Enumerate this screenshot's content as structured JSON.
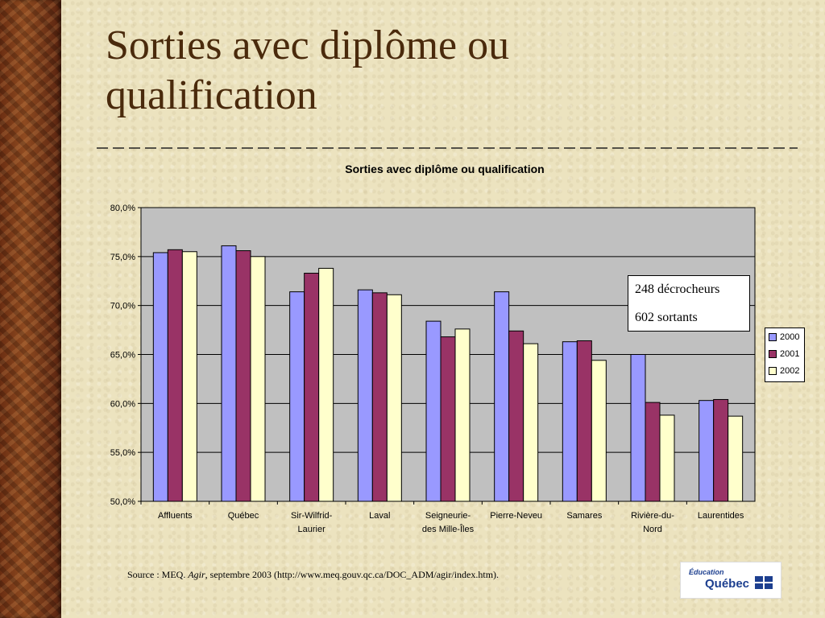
{
  "slide": {
    "title": "Sorties avec diplôme ou qualification"
  },
  "callout": {
    "line1": "248 décrocheurs",
    "line2": "602 sortants"
  },
  "source": {
    "prefix": "Source : MEQ. ",
    "italic": "Agir",
    "suffix": ", septembre 2003 (http://www.meq.gouv.qc.ca/DOC_ADM/agir/index.htm)."
  },
  "logo": {
    "line1": "Éducation",
    "line2": "Québec"
  },
  "colors": {
    "title": "#4a2a0c",
    "plot_background": "#c0c0c0",
    "s2000": "#9999ff",
    "s2001": "#993366",
    "s2002": "#ffffcc"
  },
  "chart_data": {
    "type": "bar",
    "title": "Sorties avec diplôme ou qualification",
    "xlabel": "",
    "ylabel": "",
    "ylim": [
      50,
      80
    ],
    "yticks": [
      "80,0%",
      "75,0%",
      "70,0%",
      "65,0%",
      "60,0%",
      "55,0%",
      "50,0%"
    ],
    "grid": true,
    "legend_position": "right",
    "categories": [
      [
        "Affluents"
      ],
      [
        "Québec"
      ],
      [
        "Sir-Wilfrid-",
        "Laurier"
      ],
      [
        "Laval"
      ],
      [
        "Seigneurie-",
        "des Mille-Îles"
      ],
      [
        "Pierre-Neveu"
      ],
      [
        "Samares"
      ],
      [
        "Rivière-du-",
        "Nord"
      ],
      [
        "Laurentides"
      ]
    ],
    "series": [
      {
        "name": "2000",
        "color": "#9999ff",
        "values": [
          75.4,
          76.1,
          71.4,
          71.6,
          68.4,
          71.4,
          66.3,
          65.0,
          60.3
        ]
      },
      {
        "name": "2001",
        "color": "#993366",
        "values": [
          75.7,
          75.6,
          73.3,
          71.3,
          66.8,
          67.4,
          66.4,
          60.1,
          60.4
        ]
      },
      {
        "name": "2002",
        "color": "#ffffcc",
        "values": [
          75.5,
          75.0,
          73.8,
          71.1,
          67.6,
          66.1,
          64.4,
          58.8,
          58.7
        ]
      }
    ]
  }
}
